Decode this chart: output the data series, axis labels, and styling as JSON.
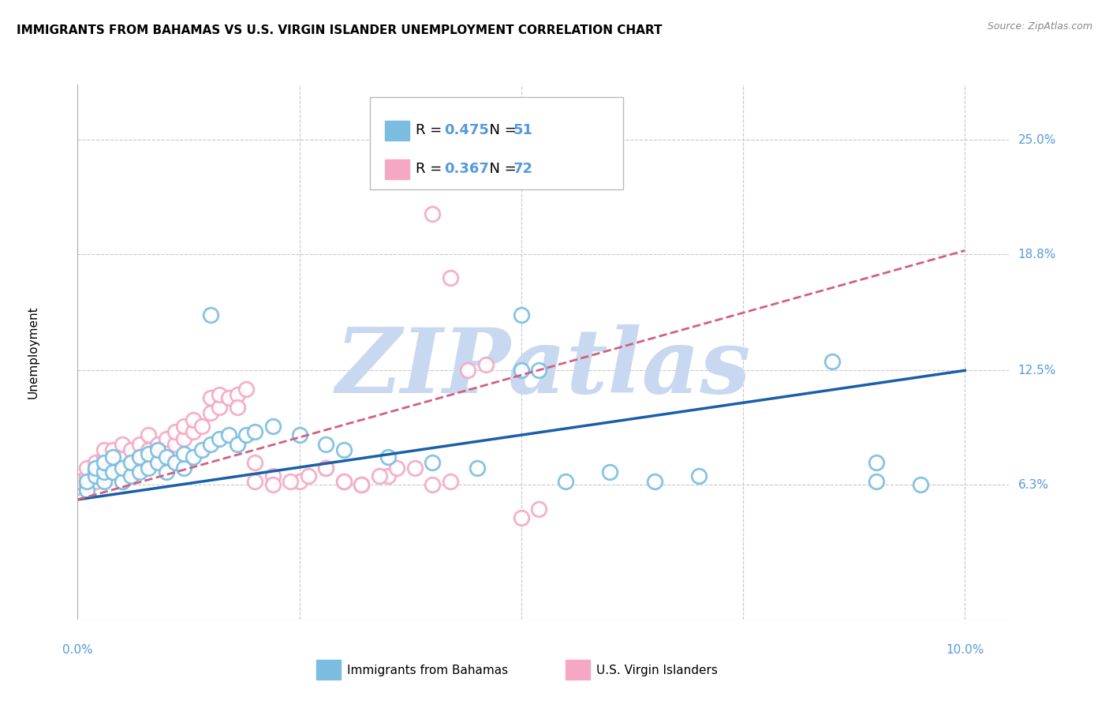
{
  "title": "IMMIGRANTS FROM BAHAMAS VS U.S. VIRGIN ISLANDER UNEMPLOYMENT CORRELATION CHART",
  "source": "Source: ZipAtlas.com",
  "ylabel": "Unemployment",
  "ytick_positions": [
    0.063,
    0.125,
    0.188,
    0.25
  ],
  "ytick_labels": [
    "6.3%",
    "12.5%",
    "18.8%",
    "25.0%"
  ],
  "xlim": [
    0.0,
    0.105
  ],
  "ylim": [
    -0.01,
    0.28
  ],
  "blue_R": "0.475",
  "blue_N": "51",
  "pink_R": "0.367",
  "pink_N": "72",
  "blue_color": "#7abde0",
  "pink_color": "#f4a8c4",
  "trend_blue": "#1a5fa8",
  "trend_pink": "#d06080",
  "watermark": "ZIPatlas",
  "watermark_color": "#c8d8f0",
  "grid_color": "#c8c8c8",
  "axis_label_color": "#5599dd",
  "title_fontsize": 11,
  "blue_scatter_x": [
    0.001,
    0.001,
    0.002,
    0.002,
    0.003,
    0.003,
    0.003,
    0.004,
    0.004,
    0.005,
    0.005,
    0.006,
    0.006,
    0.007,
    0.007,
    0.008,
    0.008,
    0.009,
    0.009,
    0.01,
    0.01,
    0.011,
    0.012,
    0.012,
    0.013,
    0.014,
    0.015,
    0.016,
    0.017,
    0.018,
    0.019,
    0.02,
    0.022,
    0.025,
    0.028,
    0.03,
    0.035,
    0.04,
    0.045,
    0.05,
    0.052,
    0.085,
    0.09,
    0.015,
    0.05,
    0.055,
    0.06,
    0.065,
    0.07,
    0.09,
    0.095
  ],
  "blue_scatter_y": [
    0.06,
    0.065,
    0.068,
    0.072,
    0.065,
    0.07,
    0.075,
    0.07,
    0.078,
    0.065,
    0.072,
    0.068,
    0.075,
    0.07,
    0.078,
    0.072,
    0.08,
    0.075,
    0.082,
    0.07,
    0.078,
    0.075,
    0.072,
    0.08,
    0.078,
    0.082,
    0.085,
    0.088,
    0.09,
    0.085,
    0.09,
    0.092,
    0.095,
    0.09,
    0.085,
    0.082,
    0.078,
    0.075,
    0.072,
    0.125,
    0.125,
    0.13,
    0.075,
    0.155,
    0.155,
    0.065,
    0.07,
    0.065,
    0.068,
    0.065,
    0.063
  ],
  "pink_scatter_x": [
    0.0,
    0.0,
    0.001,
    0.001,
    0.001,
    0.002,
    0.002,
    0.002,
    0.003,
    0.003,
    0.003,
    0.003,
    0.004,
    0.004,
    0.004,
    0.005,
    0.005,
    0.005,
    0.005,
    0.006,
    0.006,
    0.006,
    0.007,
    0.007,
    0.007,
    0.008,
    0.008,
    0.008,
    0.009,
    0.009,
    0.01,
    0.01,
    0.011,
    0.011,
    0.012,
    0.012,
    0.013,
    0.013,
    0.014,
    0.015,
    0.015,
    0.016,
    0.016,
    0.017,
    0.018,
    0.018,
    0.019,
    0.02,
    0.022,
    0.025,
    0.028,
    0.03,
    0.032,
    0.035,
    0.038,
    0.04,
    0.042,
    0.044,
    0.046,
    0.02,
    0.022,
    0.024,
    0.026,
    0.028,
    0.03,
    0.032,
    0.034,
    0.036,
    0.04,
    0.042,
    0.05,
    0.052
  ],
  "pink_scatter_y": [
    0.062,
    0.065,
    0.063,
    0.068,
    0.072,
    0.065,
    0.07,
    0.075,
    0.068,
    0.072,
    0.078,
    0.082,
    0.07,
    0.075,
    0.082,
    0.065,
    0.072,
    0.078,
    0.085,
    0.07,
    0.075,
    0.082,
    0.072,
    0.078,
    0.085,
    0.075,
    0.082,
    0.09,
    0.078,
    0.085,
    0.082,
    0.088,
    0.085,
    0.092,
    0.088,
    0.095,
    0.092,
    0.098,
    0.095,
    0.102,
    0.11,
    0.105,
    0.112,
    0.11,
    0.112,
    0.105,
    0.115,
    0.075,
    0.068,
    0.065,
    0.072,
    0.065,
    0.063,
    0.068,
    0.072,
    0.063,
    0.065,
    0.125,
    0.128,
    0.065,
    0.063,
    0.065,
    0.068,
    0.072,
    0.065,
    0.063,
    0.068,
    0.072,
    0.21,
    0.175,
    0.045,
    0.05
  ]
}
